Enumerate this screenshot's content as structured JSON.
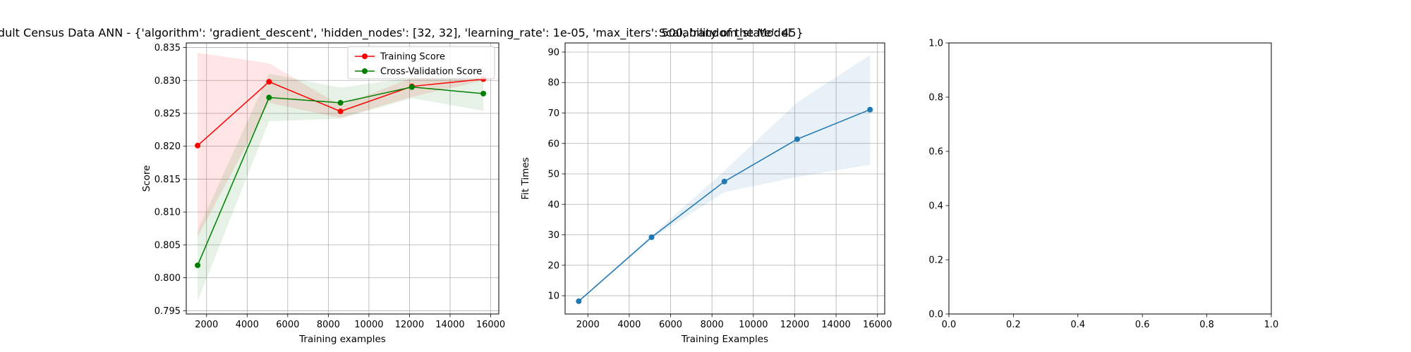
{
  "chart_data": [
    {
      "type": "line",
      "title": "Learning Curve for Adult Census Data ANN - {'algorithm': 'gradient_descent', 'hidden_nodes': [32, 32], 'learning_rate': 1e-05, 'max_iters': 500, 'random_state': 45}",
      "xlabel": "Training examples",
      "ylabel": "Score",
      "xlim": [
        1000,
        16400
      ],
      "ylim": [
        0.7945,
        0.8357
      ],
      "xticks": [
        2000,
        4000,
        6000,
        8000,
        10000,
        12000,
        14000,
        16000
      ],
      "xtick_labels": [
        "2000",
        "4000",
        "6000",
        "8000",
        "10000",
        "12000",
        "14000",
        "16000"
      ],
      "yticks": [
        0.795,
        0.8,
        0.805,
        0.81,
        0.815,
        0.82,
        0.825,
        0.83,
        0.835
      ],
      "ytick_labels": [
        "0.795",
        "0.800",
        "0.805",
        "0.810",
        "0.815",
        "0.820",
        "0.825",
        "0.830",
        "0.835"
      ],
      "grid": true,
      "legend_position": "top-right",
      "x": [
        1560,
        5080,
        8600,
        12120,
        15640
      ],
      "series": [
        {
          "name": "Training Score",
          "color": "#ff0000",
          "band_color": "#ff0000",
          "values": [
            0.8201,
            0.8298,
            0.8253,
            0.8291,
            0.8302
          ],
          "band_lower": [
            0.8062,
            0.8266,
            0.8243,
            0.8275,
            0.83
          ],
          "band_upper": [
            0.8342,
            0.8326,
            0.8262,
            0.8304,
            0.8305
          ]
        },
        {
          "name": "Cross-Validation Score",
          "color": "#008000",
          "band_color": "#008000",
          "values": [
            0.8019,
            0.8274,
            0.8266,
            0.829,
            0.828
          ],
          "band_lower": [
            0.7965,
            0.8238,
            0.8242,
            0.8273,
            0.8254
          ],
          "band_upper": [
            0.8072,
            0.831,
            0.8289,
            0.8304,
            0.8303
          ]
        }
      ]
    },
    {
      "type": "line",
      "title": "Scalability of the Model",
      "xlabel": "Training Examples",
      "ylabel": "Fit Times",
      "xlim": [
        900,
        16350
      ],
      "ylim": [
        4.0,
        93.0
      ],
      "xticks": [
        2000,
        4000,
        6000,
        8000,
        10000,
        12000,
        14000,
        16000
      ],
      "xtick_labels": [
        "2000",
        "4000",
        "6000",
        "8000",
        "10000",
        "12000",
        "14000",
        "16000"
      ],
      "yticks": [
        10,
        20,
        30,
        40,
        50,
        60,
        70,
        80,
        90
      ],
      "ytick_labels": [
        "10",
        "20",
        "30",
        "40",
        "50",
        "60",
        "70",
        "80",
        "90"
      ],
      "grid": true,
      "x": [
        1560,
        5080,
        8600,
        12120,
        15640
      ],
      "series": [
        {
          "color": "#1f77b4",
          "band_color": "#1f77b4",
          "values": [
            8.2,
            29.2,
            47.5,
            61.4,
            71.1
          ],
          "band_lower": [
            7.9,
            28.7,
            44.0,
            49.0,
            53.0
          ],
          "band_upper": [
            8.5,
            29.8,
            51.0,
            73.5,
            89.0
          ]
        }
      ]
    },
    {
      "type": "line",
      "title": "",
      "xlabel": "",
      "ylabel": "",
      "xlim": [
        0.0,
        1.0
      ],
      "ylim": [
        0.0,
        1.0
      ],
      "xticks": [
        0.0,
        0.2,
        0.4,
        0.6,
        0.8,
        1.0
      ],
      "xtick_labels": [
        "0.0",
        "0.2",
        "0.4",
        "0.6",
        "0.8",
        "1.0"
      ],
      "yticks": [
        0.0,
        0.2,
        0.4,
        0.6,
        0.8,
        1.0
      ],
      "ytick_labels": [
        "0.0",
        "0.2",
        "0.4",
        "0.6",
        "0.8",
        "1.0"
      ],
      "grid": false,
      "x": [],
      "series": []
    }
  ]
}
